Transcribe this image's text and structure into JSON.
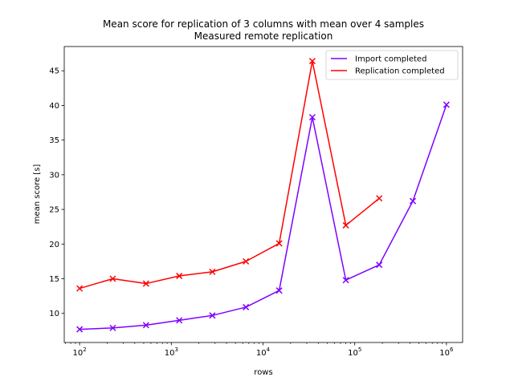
{
  "chart_data": {
    "type": "line",
    "title": "Mean score for replication of 3 columns with mean over 4 samples",
    "subtitle": "Measured remote replication",
    "xlabel": "rows",
    "ylabel": "mean score [s]",
    "x_scale": "log",
    "xlim": [
      68,
      1500000
    ],
    "ylim": [
      5.8,
      48.5
    ],
    "x_ticks": [
      {
        "value": 100,
        "base": "10",
        "exp": "2"
      },
      {
        "value": 1000,
        "base": "10",
        "exp": "3"
      },
      {
        "value": 10000,
        "base": "10",
        "exp": "4"
      },
      {
        "value": 100000,
        "base": "10",
        "exp": "5"
      },
      {
        "value": 1000000,
        "base": "10",
        "exp": "6"
      }
    ],
    "y_ticks": [
      "10",
      "15",
      "20",
      "25",
      "30",
      "35",
      "40",
      "45"
    ],
    "legend_position": "top-right",
    "grid": false,
    "marker": "x",
    "series": [
      {
        "name": "Import completed",
        "color": "#7f00ff",
        "x": [
          100,
          230,
          530,
          1220,
          2800,
          6500,
          15000,
          34500,
          80000,
          185000,
          430000,
          1000000
        ],
        "values": [
          7.7,
          7.9,
          8.3,
          9.0,
          9.7,
          10.9,
          13.3,
          38.3,
          14.8,
          17.0,
          26.2,
          40.1
        ]
      },
      {
        "name": "Replication completed",
        "color": "#ff0000",
        "x": [
          100,
          230,
          530,
          1220,
          2800,
          6500,
          15000,
          34500,
          80000,
          185000
        ],
        "values": [
          13.6,
          15.0,
          14.3,
          15.4,
          16.0,
          17.5,
          20.1,
          46.4,
          22.7,
          26.6
        ]
      }
    ]
  }
}
